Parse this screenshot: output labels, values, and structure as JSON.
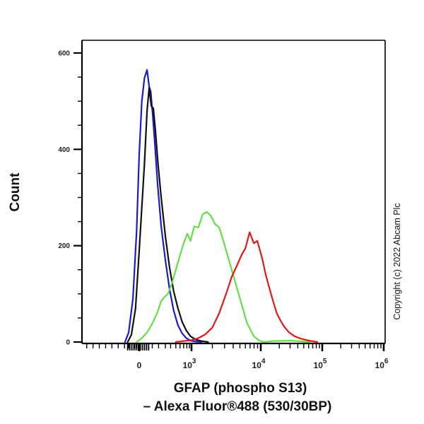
{
  "chart_data": {
    "type": "line",
    "title": "",
    "ylabel": "Count",
    "xlabel_lines": [
      "GFAP (phospho S13)",
      "– Alexa Fluor®488 (530/30BP)"
    ],
    "xscale": "biexponential",
    "ylim": [
      0,
      600
    ],
    "y_major_ticks": [
      0,
      200,
      400,
      600
    ],
    "y_minor_step": 50,
    "x_major_ticks": [
      {
        "label": "0",
        "base": "0",
        "exp": ""
      },
      {
        "label": "10^3",
        "base": "10",
        "exp": "3"
      },
      {
        "label": "10^4",
        "base": "10",
        "exp": "4"
      },
      {
        "label": "10^5",
        "base": "10",
        "exp": "5"
      },
      {
        "label": "10^6",
        "base": "10",
        "exp": "6"
      }
    ],
    "x_units_note": "x values given in axis display units: 0 = '0', 1 = 10^3, 2 = 10^4, 3 = 10^5, 4 = 10^6",
    "xlim_units": [
      -1.09,
      4.0
    ],
    "grid": false,
    "legend": "none",
    "series": [
      {
        "name": "blue",
        "color": "#1a1acc",
        "x": [
          -0.27,
          -0.2,
          -0.12,
          -0.05,
          0.0,
          0.05,
          0.1,
          0.15,
          0.19,
          0.22,
          0.26,
          0.3,
          0.35,
          0.42,
          0.5,
          0.58,
          0.66,
          0.74,
          0.82,
          0.9,
          0.98,
          1.06,
          1.14
        ],
        "y": [
          0,
          20,
          90,
          230,
          390,
          500,
          548,
          565,
          530,
          520,
          470,
          410,
          330,
          240,
          170,
          110,
          65,
          35,
          18,
          8,
          3,
          1,
          0
        ]
      },
      {
        "name": "black",
        "color": "#111111",
        "x": [
          -0.22,
          -0.15,
          -0.07,
          0.0,
          0.05,
          0.1,
          0.15,
          0.19,
          0.23,
          0.27,
          0.31,
          0.36,
          0.42,
          0.5,
          0.58,
          0.66,
          0.74,
          0.82,
          0.9,
          0.98,
          1.06,
          1.14,
          1.24
        ],
        "y": [
          0,
          15,
          70,
          190,
          280,
          370,
          480,
          528,
          490,
          485,
          440,
          370,
          300,
          220,
          155,
          105,
          70,
          42,
          24,
          12,
          5,
          2,
          0
        ]
      },
      {
        "name": "green",
        "color": "#66dd44",
        "x": [
          -0.05,
          0.05,
          0.15,
          0.25,
          0.35,
          0.42,
          0.48,
          0.55,
          0.62,
          0.7,
          0.78,
          0.85,
          0.92,
          0.98,
          1.04,
          1.1,
          1.16,
          1.22,
          1.28,
          1.34,
          1.4,
          1.46,
          1.52,
          1.6,
          1.7,
          1.8,
          1.9,
          1.98,
          2.05,
          2.2,
          2.5,
          2.8
        ],
        "y": [
          0,
          8,
          20,
          38,
          62,
          85,
          93,
          100,
          120,
          150,
          180,
          205,
          225,
          210,
          240,
          238,
          265,
          270,
          262,
          245,
          238,
          210,
          180,
          140,
          90,
          40,
          12,
          3,
          0,
          2,
          3,
          0
        ]
      },
      {
        "name": "red",
        "color": "#dd1a1a",
        "x": [
          0.7,
          1.0,
          1.1,
          1.2,
          1.3,
          1.4,
          1.5,
          1.58,
          1.66,
          1.72,
          1.78,
          1.84,
          1.9,
          1.95,
          1.99,
          2.03,
          2.08,
          2.14,
          2.2,
          2.26,
          2.32,
          2.38,
          2.46,
          2.55,
          2.65,
          2.78,
          2.92
        ],
        "y": [
          0,
          4,
          8,
          16,
          30,
          60,
          100,
          135,
          160,
          180,
          195,
          228,
          205,
          210,
          190,
          170,
          140,
          112,
          85,
          60,
          45,
          32,
          20,
          12,
          7,
          3,
          0
        ]
      }
    ],
    "annotation": "Copyright (c) 2022 Abcam Plc"
  }
}
